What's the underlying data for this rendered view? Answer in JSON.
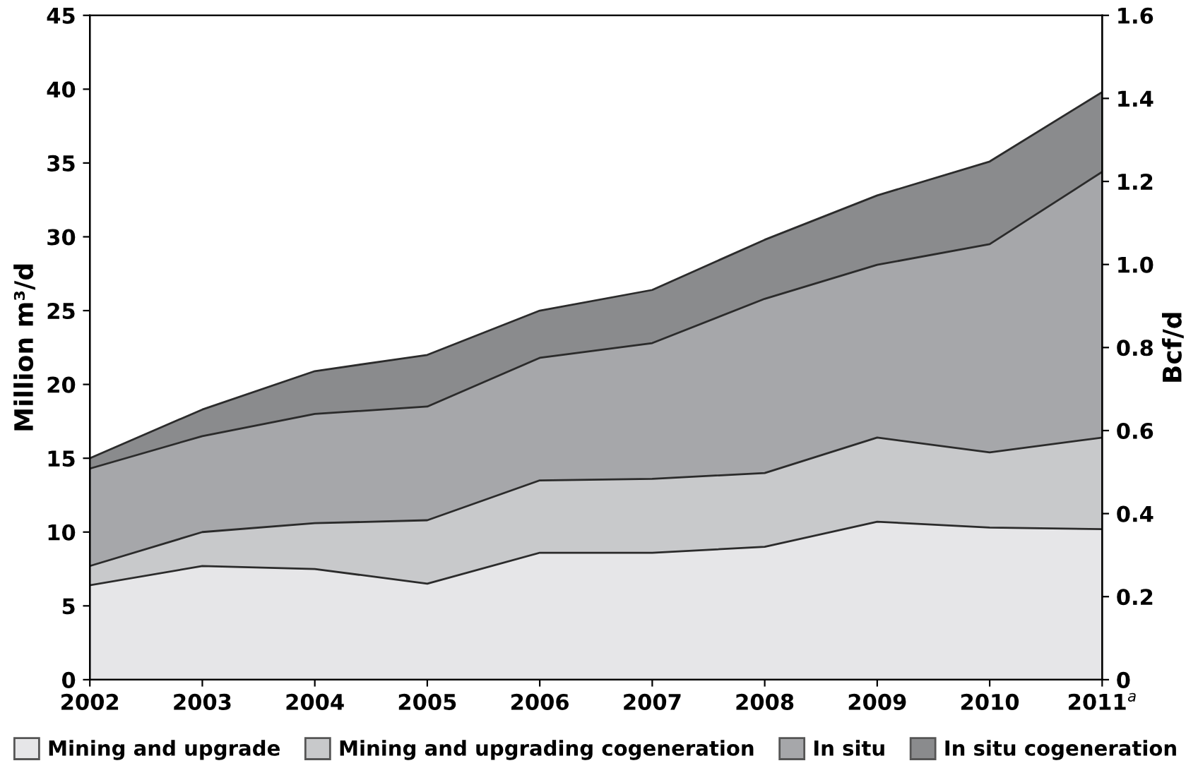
{
  "chart_data": {
    "type": "area",
    "stacked": true,
    "categories": [
      "2002",
      "2003",
      "2004",
      "2005",
      "2006",
      "2007",
      "2008",
      "2009",
      "2010",
      "2011$^{a}$"
    ],
    "series": [
      {
        "name": "Mining and upgrade",
        "color": "#e6e6e8",
        "values": [
          6.4,
          7.7,
          7.5,
          6.5,
          8.6,
          8.6,
          9.0,
          10.7,
          10.3,
          10.2
        ]
      },
      {
        "name": "Mining and upgrading cogeneration",
        "color": "#c8c9cb",
        "values": [
          1.3,
          2.3,
          3.1,
          4.3,
          4.9,
          5.0,
          5.0,
          5.7,
          5.1,
          6.2
        ]
      },
      {
        "name": "In situ",
        "color": "#a6a7aa",
        "values": [
          6.6,
          6.5,
          7.4,
          7.7,
          8.3,
          9.2,
          11.8,
          11.7,
          14.1,
          18.0
        ]
      },
      {
        "name": "In situ cogeneration",
        "color": "#8a8b8d",
        "values": [
          0.7,
          1.8,
          2.9,
          3.5,
          3.2,
          3.6,
          4.0,
          4.7,
          5.6,
          5.4
        ]
      }
    ],
    "ylabel": "Million m³/d",
    "y2label": "Bcf/d",
    "ylim": [
      0,
      45
    ],
    "yticks": [
      0,
      5,
      10,
      15,
      20,
      25,
      30,
      35,
      40,
      45
    ],
    "y2lim": [
      0,
      1.6
    ],
    "y2ticks": [
      0,
      0.2,
      0.4,
      0.6,
      0.8,
      {
        "value": 1,
        "label": "1.0"
      },
      1.2,
      1.4,
      1.6
    ],
    "grid": false,
    "legend": "bottom"
  }
}
